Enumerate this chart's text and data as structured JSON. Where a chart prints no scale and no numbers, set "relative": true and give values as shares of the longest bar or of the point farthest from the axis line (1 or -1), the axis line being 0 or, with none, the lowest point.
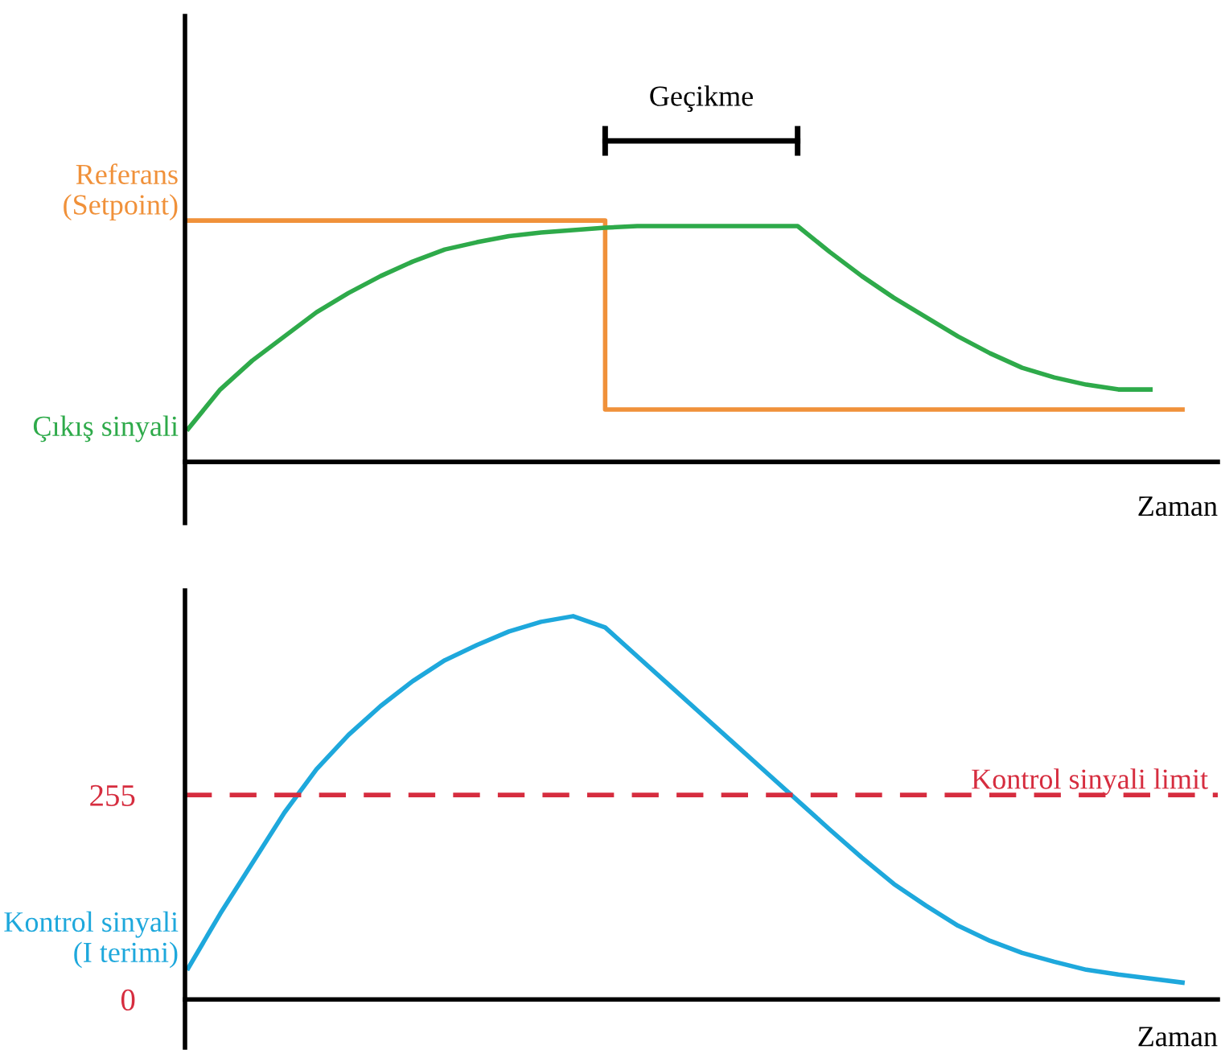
{
  "chart_data": [
    {
      "type": "line",
      "relative": true,
      "xlabel": "Zaman",
      "categories": [
        null,
        null,
        null,
        null,
        null,
        null,
        null,
        null,
        null,
        null,
        null,
        null,
        null,
        null,
        null,
        null,
        null,
        null,
        null,
        null,
        null,
        null,
        null,
        null,
        null,
        null,
        null,
        null,
        null,
        null,
        null,
        null
      ],
      "series": [
        {
          "name": "Referans (Setpoint)",
          "type": "step",
          "color": "#f0913a",
          "values": [
            1,
            1,
            1,
            1,
            1,
            1,
            1,
            1,
            1,
            1,
            1,
            1,
            1,
            0.217,
            0.217,
            0.217,
            0.217,
            0.217,
            0.217,
            0.217,
            0.217,
            0.217,
            0.217,
            0.217,
            0.217,
            0.217,
            0.217,
            0.217,
            0.217,
            0.217,
            0.217,
            0.217
          ]
        },
        {
          "name": "Çıkış sinyali",
          "type": "line",
          "color": "#2eaa4a",
          "values": [
            0.137,
            0.3,
            0.42,
            0.52,
            0.62,
            0.7,
            0.77,
            0.83,
            0.88,
            0.91,
            0.935,
            0.95,
            0.96,
            0.97,
            0.977,
            0.977,
            0.977,
            0.977,
            0.977,
            0.977,
            0.87,
            0.77,
            0.68,
            0.6,
            0.52,
            0.45,
            0.39,
            0.35,
            0.32,
            0.3,
            0.3,
            null
          ]
        }
      ],
      "annotations": [
        "Geçikme"
      ],
      "tick_labels": false,
      "grid": false
    },
    {
      "type": "line",
      "xlabel": "Zaman",
      "categories": [
        null,
        null,
        null,
        null,
        null,
        null,
        null,
        null,
        null,
        null,
        null,
        null,
        null,
        null,
        null,
        null,
        null,
        null,
        null,
        null,
        null,
        null,
        null,
        null,
        null,
        null,
        null,
        null,
        null,
        null,
        null,
        null
      ],
      "ylim": [
        -60,
        510
      ],
      "yticks": [
        0,
        255
      ],
      "series": [
        {
          "name": "Kontrol sinyali (I terimi)",
          "color": "#1ea8dc",
          "values": [
            39,
            107,
            170,
            233,
            287,
            330,
            366,
            397,
            423,
            442,
            459,
            471,
            478,
            464,
            428,
            392,
            356,
            320,
            284,
            248,
            212,
            177,
            144,
            117,
            92,
            73,
            58,
            47,
            37,
            31,
            26,
            21
          ]
        }
      ],
      "ref_lines": [
        {
          "axis": "y",
          "value": 255,
          "label": "Kontrol sinyali limit",
          "color": "#d62d3f",
          "line_style": "dashed"
        }
      ],
      "tick_labels": "y",
      "grid": false
    }
  ]
}
